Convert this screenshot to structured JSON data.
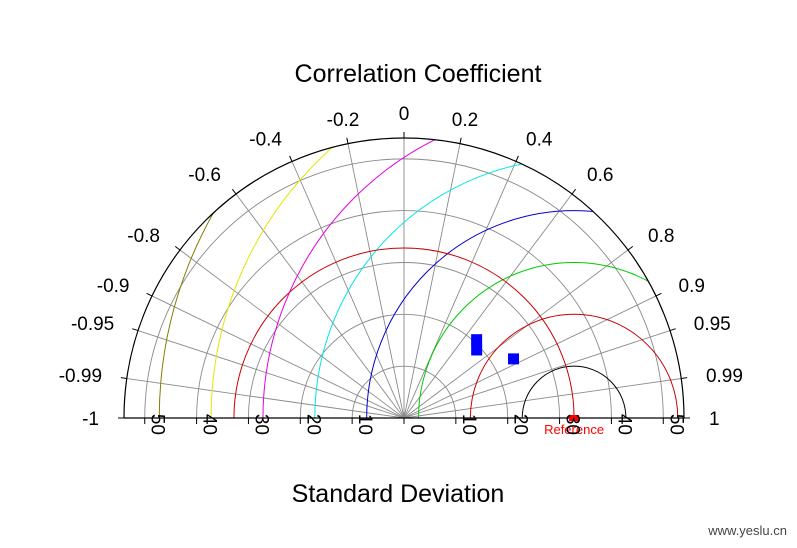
{
  "chart_data": {
    "type": "taylor",
    "title": "Correlation Coefficient",
    "xlabel": "Standard Deviation",
    "std_range": [
      -54,
      54
    ],
    "std_ticks": [
      50,
      40,
      30,
      20,
      10,
      0,
      10,
      20,
      30,
      40,
      50
    ],
    "correlation_ticks": [
      {
        "value": -1,
        "label": "-1"
      },
      {
        "value": -0.99,
        "label": "-0.99"
      },
      {
        "value": -0.95,
        "label": "-0.95"
      },
      {
        "value": -0.9,
        "label": "-0.9"
      },
      {
        "value": -0.8,
        "label": "-0.8"
      },
      {
        "value": -0.6,
        "label": "-0.6"
      },
      {
        "value": -0.4,
        "label": "-0.4"
      },
      {
        "value": -0.2,
        "label": "-0.2"
      },
      {
        "value": 0,
        "label": "0"
      },
      {
        "value": 0.2,
        "label": "0.2"
      },
      {
        "value": 0.4,
        "label": "0.4"
      },
      {
        "value": 0.6,
        "label": "0.6"
      },
      {
        "value": 0.8,
        "label": "0.8"
      },
      {
        "value": 0.9,
        "label": "0.9"
      },
      {
        "value": 0.95,
        "label": "0.95"
      },
      {
        "value": 0.99,
        "label": "0.99"
      },
      {
        "value": 1,
        "label": "1"
      }
    ],
    "std_arcs": [
      10,
      20,
      30,
      40,
      50
    ],
    "reference": {
      "label": "Reference",
      "std": 32.8,
      "correlation": 1,
      "color": "#ff0000"
    },
    "rms_contours": [
      {
        "value": 10,
        "color": "#000000"
      },
      {
        "value": 20,
        "color": "#cc0000"
      },
      {
        "value": 30,
        "color": "#00cc00"
      },
      {
        "value": 40,
        "color": "#0000cc"
      },
      {
        "value": 50,
        "color": "#00e5e5"
      },
      {
        "value": 60,
        "color": "#e500e5"
      },
      {
        "value": 70,
        "color": "#e5e500"
      },
      {
        "value": 80,
        "color": "#808000"
      }
    ],
    "extra_std_arcs": [
      {
        "value": 32.8,
        "color": "#cc0000"
      }
    ],
    "points": [
      {
        "std": 20.6,
        "correlation": 0.68,
        "color": "#0000ff"
      },
      {
        "std": 24.0,
        "correlation": 0.88,
        "color": "#0000ff"
      },
      {
        "std": 19.2,
        "correlation": 0.73,
        "color": "#0000ff"
      }
    ],
    "grid": true
  },
  "watermark": "www.yeslu.cn"
}
